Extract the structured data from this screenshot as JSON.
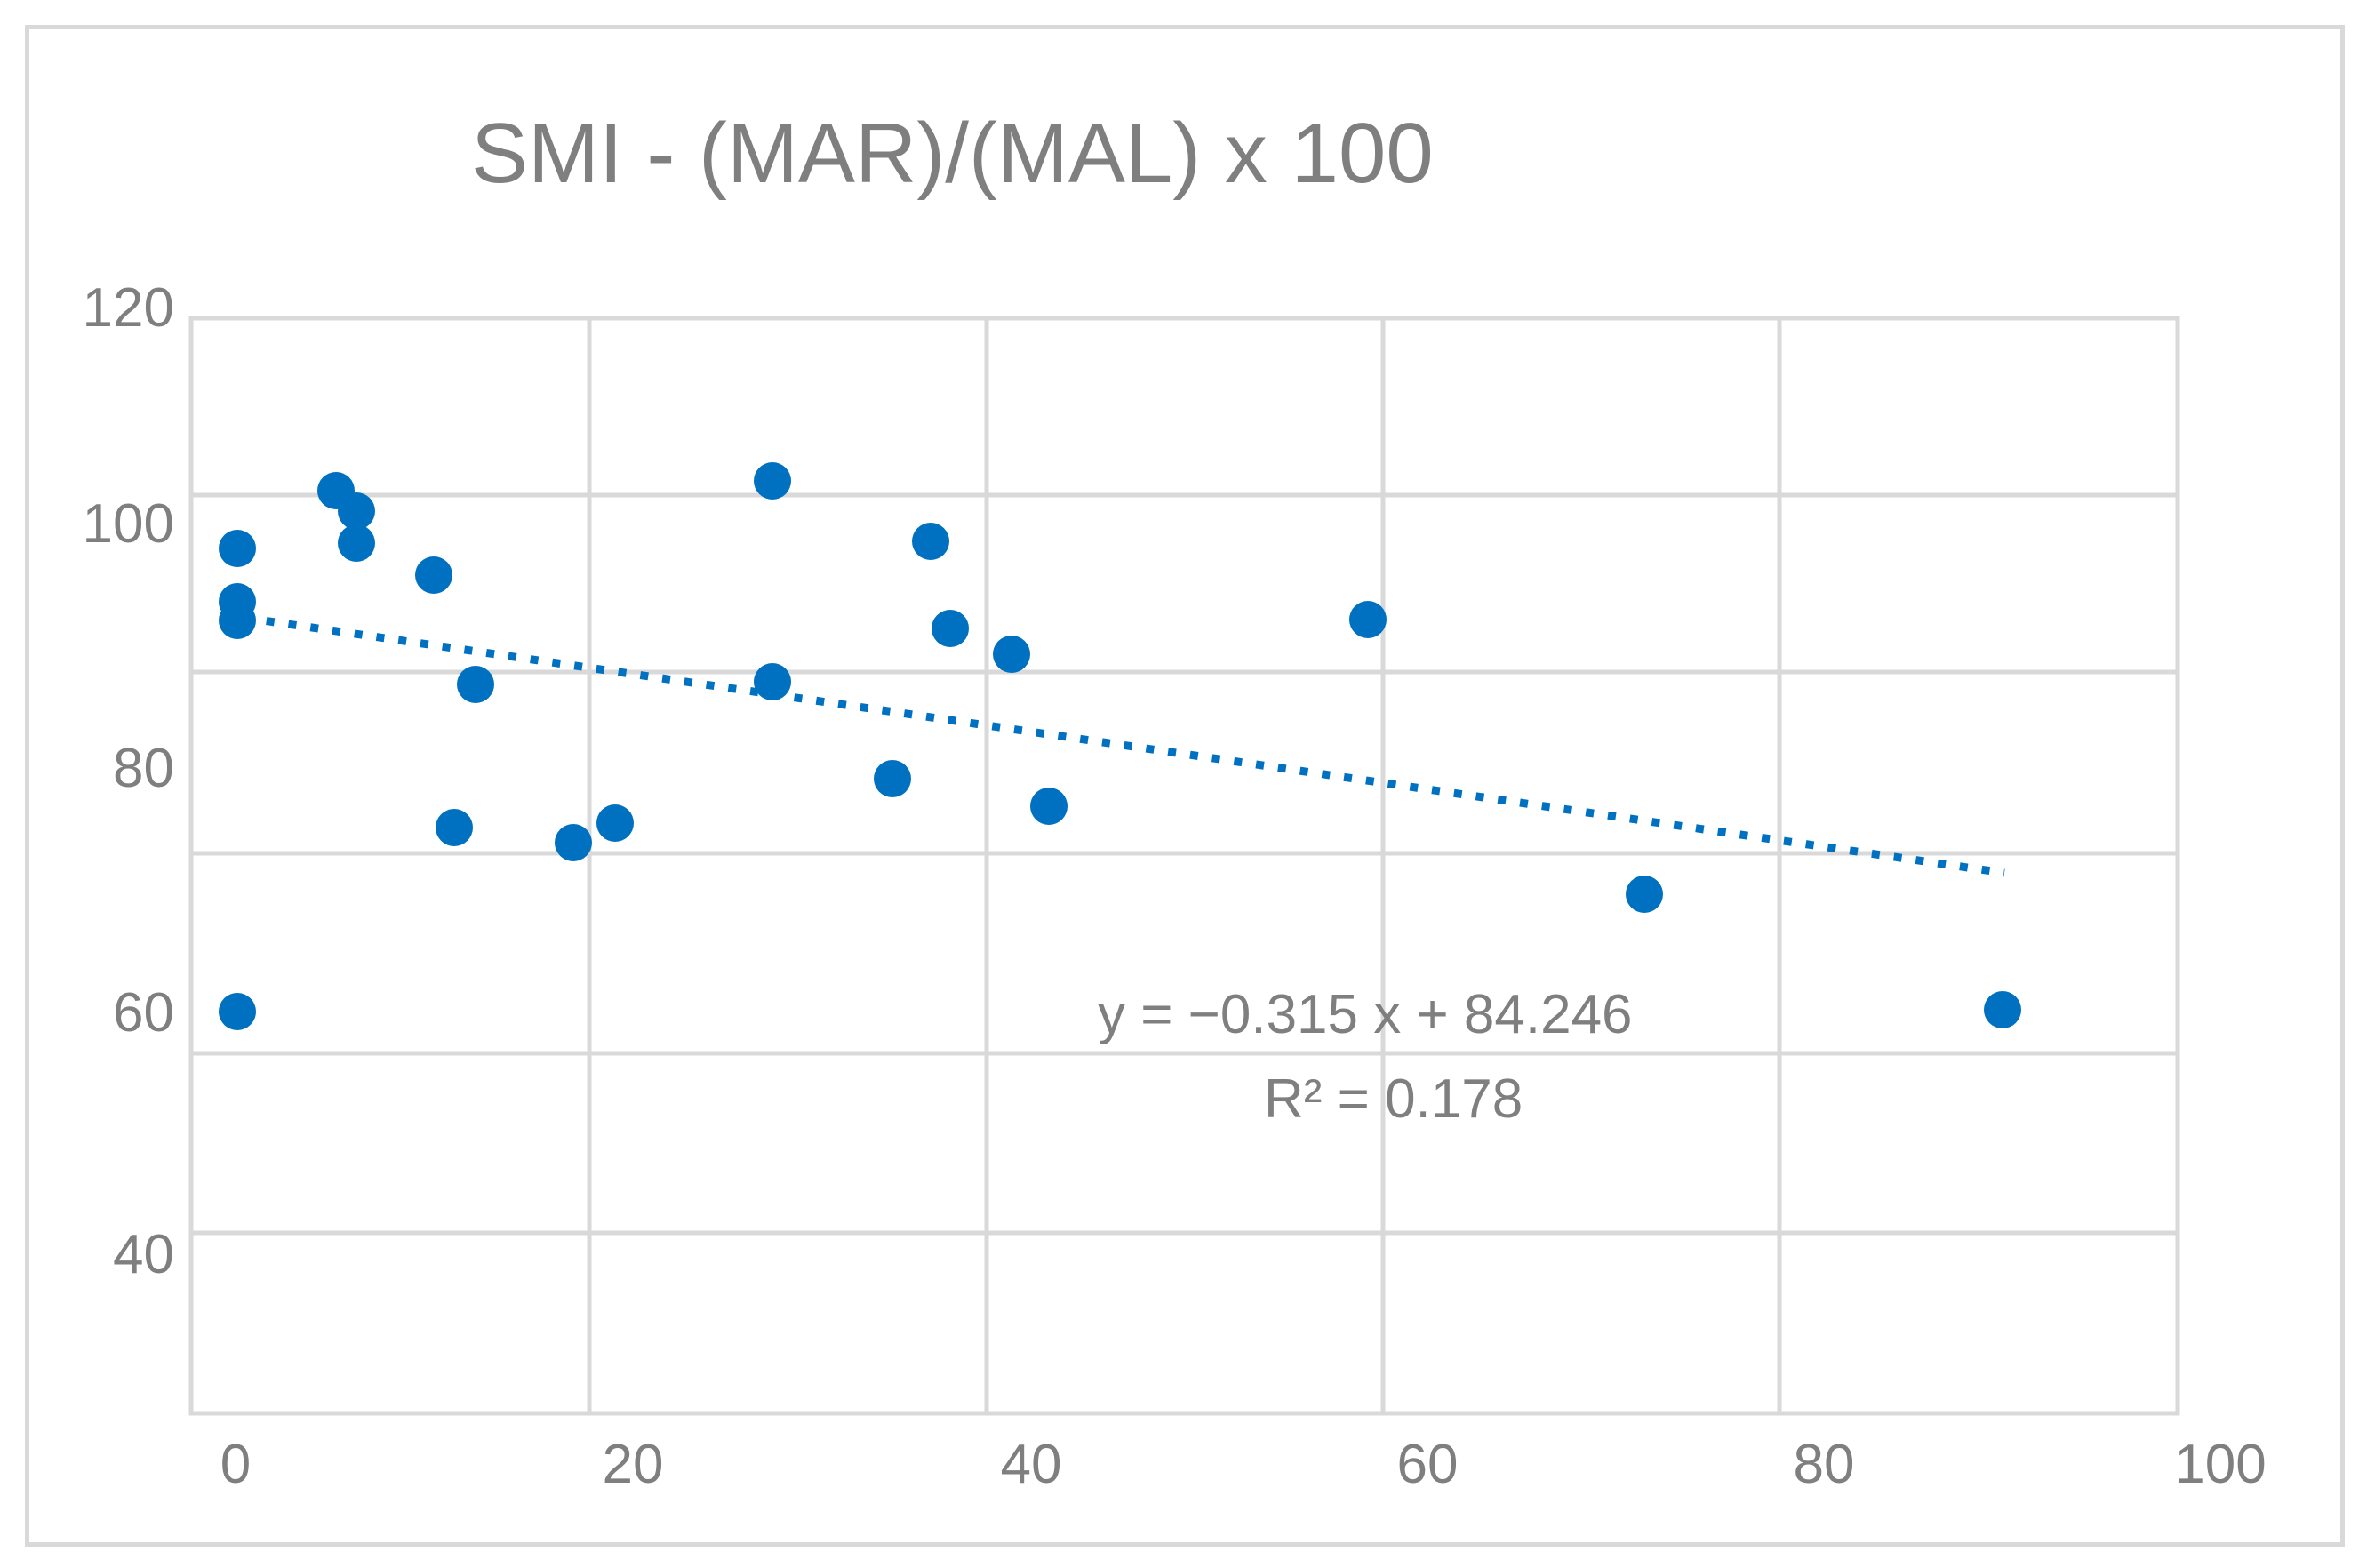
{
  "chart_data": {
    "type": "scatter",
    "title": "SMI - (MAR)/(MAL) x 100",
    "xlabel": "",
    "ylabel": "",
    "xlim": [
      0,
      100
    ],
    "xticks": [
      0,
      20,
      40,
      60,
      80,
      100
    ],
    "xtick_labels": [
      "0",
      "20",
      "40",
      "60",
      "80",
      "100"
    ],
    "ytick_labels": [
      "120",
      "100",
      "80",
      "60",
      "40"
    ],
    "grid": true,
    "series": [
      {
        "name": "SMI",
        "color": "#0070C0",
        "points": [
          {
            "x": 0,
            "y": 96
          },
          {
            "x": 0,
            "y": 92
          },
          {
            "x": 0,
            "y": 90.5
          },
          {
            "x": 0,
            "y": 60
          },
          {
            "x": 5,
            "y": 100
          },
          {
            "x": 6,
            "y": 98.5
          },
          {
            "x": 6,
            "y": 96.5
          },
          {
            "x": 10,
            "y": 94
          },
          {
            "x": 11,
            "y": 73.5
          },
          {
            "x": 12,
            "y": 85
          },
          {
            "x": 17,
            "y": 72.5
          },
          {
            "x": 19,
            "y": 73.5
          },
          {
            "x": 27,
            "y": 101
          },
          {
            "x": 27,
            "y": 85
          },
          {
            "x": 33,
            "y": 77.5
          },
          {
            "x": 35,
            "y": 96.5
          },
          {
            "x": 36,
            "y": 89.5
          },
          {
            "x": 39,
            "y": 87.5
          },
          {
            "x": 41,
            "y": 75.5
          },
          {
            "x": 57,
            "y": 90.5
          },
          {
            "x": 71,
            "y": 68
          },
          {
            "x": 89,
            "y": 60
          }
        ]
      }
    ],
    "trendline": {
      "type": "linear",
      "style": "dotted",
      "x_range": [
        0,
        89
      ],
      "equation": "y = −0.315  x + 84.246",
      "r_squared": "R² = 0.178"
    }
  }
}
